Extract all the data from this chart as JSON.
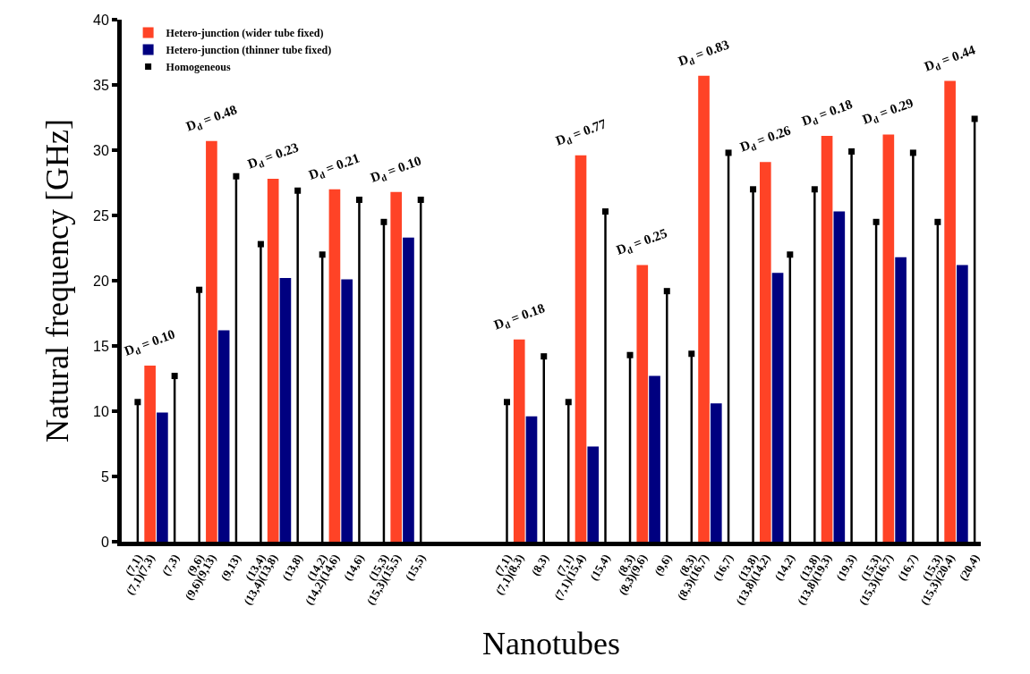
{
  "chart_data": {
    "type": "bar",
    "xlabel": "Nanotubes",
    "ylabel": "Natural frequency [GHz]",
    "categories": [
      "(7,1)",
      "(7,1)(7,3)",
      null,
      "(7,3)",
      null,
      "(9,6)",
      "(9,6)(9,13)",
      null,
      "(9,13)",
      null,
      "(13,4)",
      "(13,4)(13,8)",
      null,
      "(13,8)",
      null,
      "(14,2)",
      "(14,2)(14,6)",
      null,
      "(14,6)",
      null,
      "(15,3)",
      "(15,3)(15,5)",
      null,
      "(15,5)",
      null,
      null,
      null,
      null,
      null,
      null,
      "(7,1)",
      "(7,1)(8,3)",
      null,
      "(8,3)",
      null,
      "(7,1)",
      "(7,1)(15,4)",
      null,
      "(15,4)",
      null,
      "(8,3)",
      "(8,3)(9,6)",
      null,
      "(9,6)",
      null,
      "(8,3)",
      "(8,3)(16,7)",
      null,
      "(16,7)",
      null,
      "(13,8)",
      "(13,8)(14,2)",
      null,
      "(14,2)",
      null,
      "(13,8)",
      "(13,8)(19,3)",
      null,
      "(19,3)",
      null,
      "(15,3)",
      "(15,3)(16,7)",
      null,
      "(16,7)",
      null,
      "(15,3)",
      "(15,3)(20,4)",
      null,
      "(20,4)"
    ],
    "series": [
      {
        "name": "Hetero-junction (wider tube fixed)",
        "color": "#ff4326",
        "values": [
          null,
          13.5,
          null,
          null,
          null,
          null,
          30.7,
          null,
          null,
          null,
          null,
          27.8,
          null,
          null,
          null,
          null,
          27.0,
          null,
          null,
          null,
          null,
          26.8,
          null,
          null,
          null,
          null,
          null,
          null,
          null,
          null,
          null,
          15.5,
          null,
          null,
          null,
          null,
          29.6,
          null,
          null,
          null,
          null,
          21.2,
          null,
          null,
          null,
          null,
          35.7,
          null,
          null,
          null,
          null,
          29.1,
          null,
          null,
          null,
          null,
          31.1,
          null,
          null,
          null,
          null,
          31.2,
          null,
          null,
          null,
          null,
          35.3,
          null,
          null
        ]
      },
      {
        "name": "Hetero-junction (thinner tube fixed)",
        "color": "#000080",
        "values": [
          null,
          null,
          9.9,
          null,
          null,
          null,
          null,
          16.2,
          null,
          null,
          null,
          null,
          20.2,
          null,
          null,
          null,
          null,
          20.1,
          null,
          null,
          null,
          null,
          23.3,
          null,
          null,
          null,
          null,
          null,
          null,
          null,
          null,
          null,
          9.6,
          null,
          null,
          null,
          null,
          7.3,
          null,
          null,
          null,
          null,
          12.7,
          null,
          null,
          null,
          null,
          10.6,
          null,
          null,
          null,
          null,
          20.6,
          null,
          null,
          null,
          null,
          25.3,
          null,
          null,
          null,
          null,
          21.8,
          null,
          null,
          null,
          null,
          21.2,
          null
        ]
      },
      {
        "name": "Homogeneous",
        "type": "lollipop",
        "color": "#000000",
        "values": [
          10.7,
          null,
          null,
          12.7,
          null,
          19.3,
          null,
          null,
          28.0,
          null,
          22.8,
          null,
          null,
          26.9,
          null,
          22.0,
          null,
          null,
          26.2,
          null,
          24.5,
          null,
          null,
          26.2,
          null,
          null,
          null,
          null,
          null,
          null,
          10.7,
          null,
          null,
          14.2,
          null,
          10.7,
          null,
          null,
          25.3,
          null,
          14.3,
          null,
          null,
          19.2,
          null,
          14.4,
          null,
          null,
          29.8,
          null,
          27.0,
          null,
          null,
          22.0,
          null,
          27.0,
          null,
          null,
          29.9,
          null,
          24.5,
          null,
          null,
          29.8,
          null,
          24.5,
          null,
          null,
          32.4
        ]
      }
    ],
    "ylim": [
      0,
      40
    ],
    "yticks": [
      0,
      5,
      10,
      15,
      20,
      25,
      30,
      35,
      40
    ],
    "grid": false,
    "legend": "top left",
    "annotations": [
      {
        "text": "D$_{d}$ = 0.10",
        "x": "(7,1)(7,3)",
        "y": 13.5
      },
      {
        "text": "D$_{d}$ = 0.48",
        "x": "(9,6)(9,13)",
        "y": 30.7
      },
      {
        "text": "D$_{d}$ = 0.23",
        "x": "(13,4)(13,8)",
        "y": 27.8
      },
      {
        "text": "D$_{d}$ = 0.21",
        "x": "(14,2)(14,6)",
        "y": 27.0
      },
      {
        "text": "D$_{d}$ = 0.10",
        "x": "(15,3)(15,5)",
        "y": 26.8
      },
      {
        "text": "D$_{d}$ = 0.18",
        "x": "(7,1)(8,3)",
        "y": 15.5
      },
      {
        "text": "D$_{d}$ = 0.77",
        "x": "(7,1)(15,4)",
        "y": 29.6
      },
      {
        "text": "D$_{d}$ = 0.25",
        "x": "(8,3)(9,6)",
        "y": 21.2
      },
      {
        "text": "D$_{d}$ = 0.83",
        "x": "(8,3)(16,7)",
        "y": 35.7
      },
      {
        "text": "D$_{d}$ = 0.26",
        "x": "(13,8)(14,2)",
        "y": 29.1
      },
      {
        "text": "D$_{d}$ = 0.18",
        "x": "(13,8)(19,3)",
        "y": 31.1
      },
      {
        "text": "D$_{d}$ = 0.29",
        "x": "(15,3)(16,7)",
        "y": 31.2
      },
      {
        "text": "D$_{d}$ = 0.44",
        "x": "(15,3)(20,4)",
        "y": 35.3
      }
    ]
  }
}
